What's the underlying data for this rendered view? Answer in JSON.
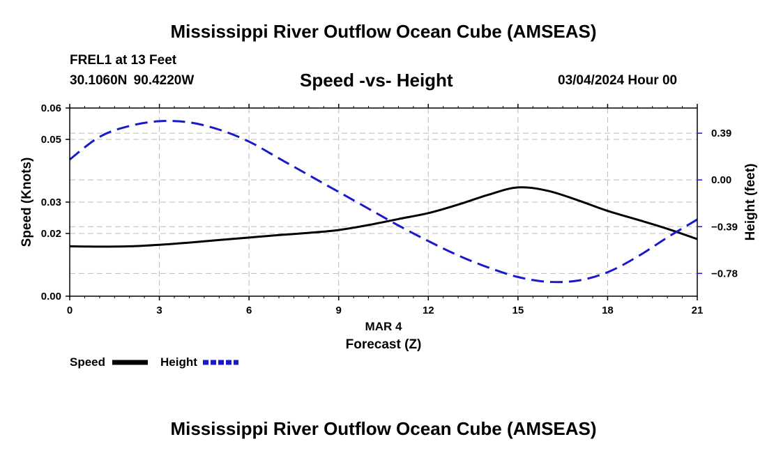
{
  "header": {
    "title": "Mississippi River Outflow Ocean Cube (AMSEAS)",
    "station": "FREL1 at 13 Feet",
    "coords": "30.1060N  90.4220W",
    "chart_title": "Speed -vs- Height",
    "datetime": "03/04/2024 Hour 00"
  },
  "footer": {
    "title": "Mississippi River Outflow Ocean Cube (AMSEAS)"
  },
  "colors": {
    "speed": "#000000",
    "height": "#1a1acc",
    "grid": "#bbbbbb"
  },
  "chart_data": {
    "type": "line",
    "title": "Speed -vs- Height",
    "xlabel": "Forecast (Z)",
    "xsublabel": "MAR 4",
    "ylabel": "Speed (Knots)",
    "y2label": "Height (feet)",
    "xlim": [
      0,
      21
    ],
    "ylim": [
      0,
      0.06
    ],
    "y2lim": [
      -0.97,
      0.6
    ],
    "xticks": [
      0,
      3,
      6,
      9,
      12,
      15,
      18,
      21
    ],
    "xtick_labels": [
      "0",
      "3",
      "6",
      "9",
      "12",
      "15",
      "18",
      "21"
    ],
    "yticks": [
      0,
      0.02,
      0.03,
      0.05,
      0.06
    ],
    "ytick_labels": [
      "0.00",
      "0.02",
      "0.03",
      "0.05",
      "0.06"
    ],
    "y2ticks": [
      0.39,
      0,
      -0.39,
      -0.78
    ],
    "y2tick_labels": [
      "0.39",
      "0.00",
      "−0.39",
      "−0.78"
    ],
    "grid": true,
    "series": [
      {
        "name": "Speed",
        "axis": "left",
        "style": "solid",
        "x": [
          0,
          1,
          2,
          3,
          4,
          5,
          6,
          7,
          8,
          9,
          10,
          11,
          12,
          13,
          14,
          15,
          16,
          17,
          18,
          19,
          20,
          21
        ],
        "values": [
          0.0159,
          0.0158,
          0.0159,
          0.0164,
          0.0171,
          0.0179,
          0.0187,
          0.0195,
          0.0202,
          0.0211,
          0.0227,
          0.0246,
          0.0265,
          0.0292,
          0.0323,
          0.0347,
          0.0336,
          0.0306,
          0.0272,
          0.0244,
          0.0215,
          0.0182
        ]
      },
      {
        "name": "Height",
        "axis": "right",
        "style": "dashed",
        "x": [
          0,
          1,
          2,
          3,
          4,
          5,
          6,
          7,
          8,
          9,
          10,
          11,
          12,
          13,
          14,
          15,
          16,
          17,
          18,
          19,
          20,
          21
        ],
        "values": [
          0.17,
          0.36,
          0.45,
          0.49,
          0.48,
          0.42,
          0.32,
          0.18,
          0.04,
          -0.1,
          -0.24,
          -0.38,
          -0.51,
          -0.63,
          -0.73,
          -0.81,
          -0.85,
          -0.84,
          -0.77,
          -0.64,
          -0.48,
          -0.33
        ]
      }
    ],
    "legend": [
      "Speed",
      "Height"
    ]
  }
}
